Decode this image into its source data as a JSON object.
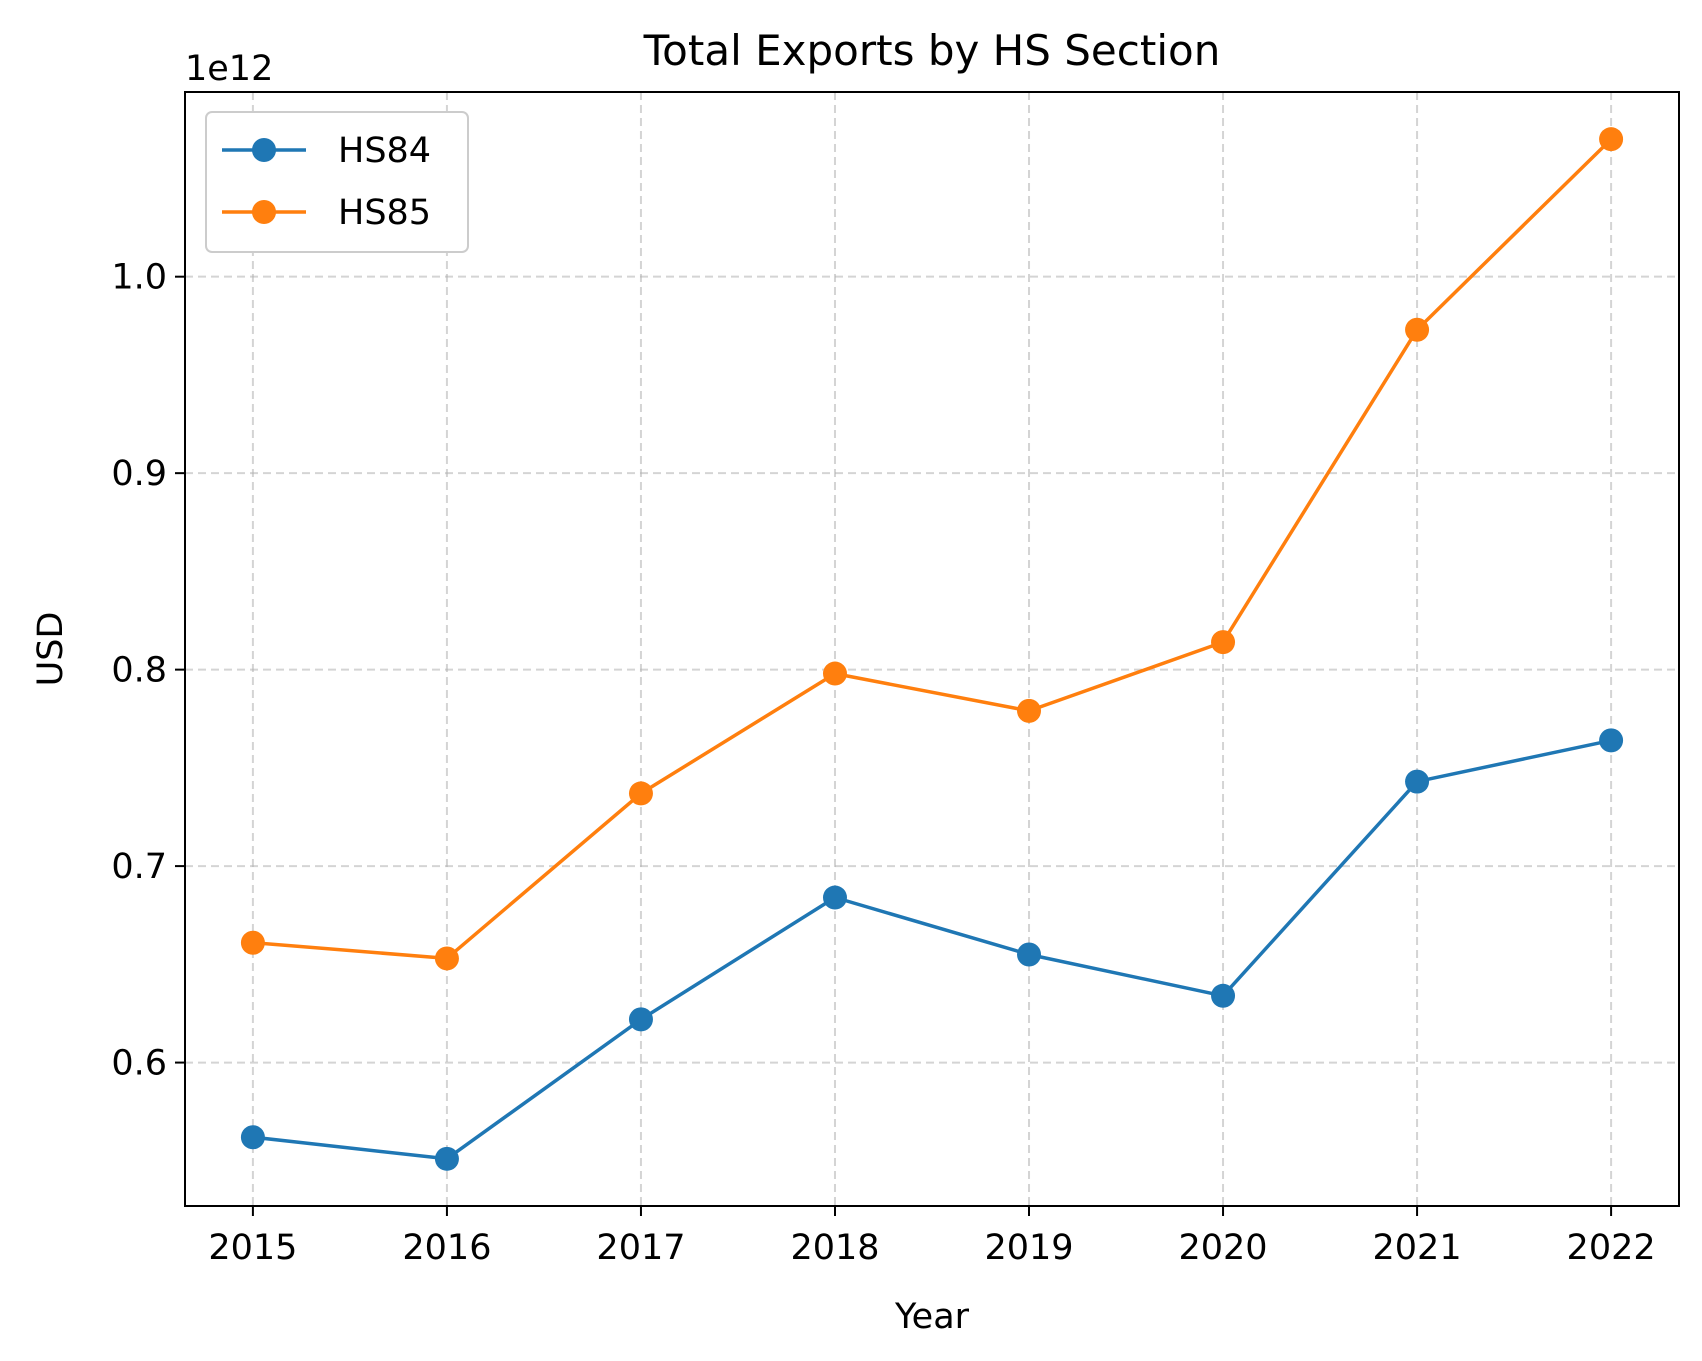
{
  "chart_data": {
    "type": "line",
    "title": "Total Exports by HS Section",
    "xlabel": "Year",
    "ylabel": "USD",
    "y_offset_label": "1e12",
    "x": [
      2015,
      2016,
      2017,
      2018,
      2019,
      2020,
      2021,
      2022
    ],
    "x_ticks": [
      "2015",
      "2016",
      "2017",
      "2018",
      "2019",
      "2020",
      "2021",
      "2022"
    ],
    "y_ticks": [
      0.6,
      0.7,
      0.8,
      0.9,
      1.0
    ],
    "y_tick_labels": [
      "0.6",
      "0.7",
      "0.8",
      "0.9",
      "1.0"
    ],
    "xlim": [
      2014.65,
      2022.35
    ],
    "ylim": [
      0.527,
      1.094
    ],
    "grid": true,
    "legend_position": "top-left",
    "series": [
      {
        "name": "HS84",
        "color": "#1f77b4",
        "marker": "circle",
        "values": [
          0.562,
          0.551,
          0.622,
          0.684,
          0.655,
          0.634,
          0.743,
          0.764
        ]
      },
      {
        "name": "HS85",
        "color": "#ff7f0e",
        "marker": "circle",
        "values": [
          0.661,
          0.653,
          0.737,
          0.798,
          0.779,
          0.814,
          0.973,
          1.07
        ]
      }
    ]
  }
}
